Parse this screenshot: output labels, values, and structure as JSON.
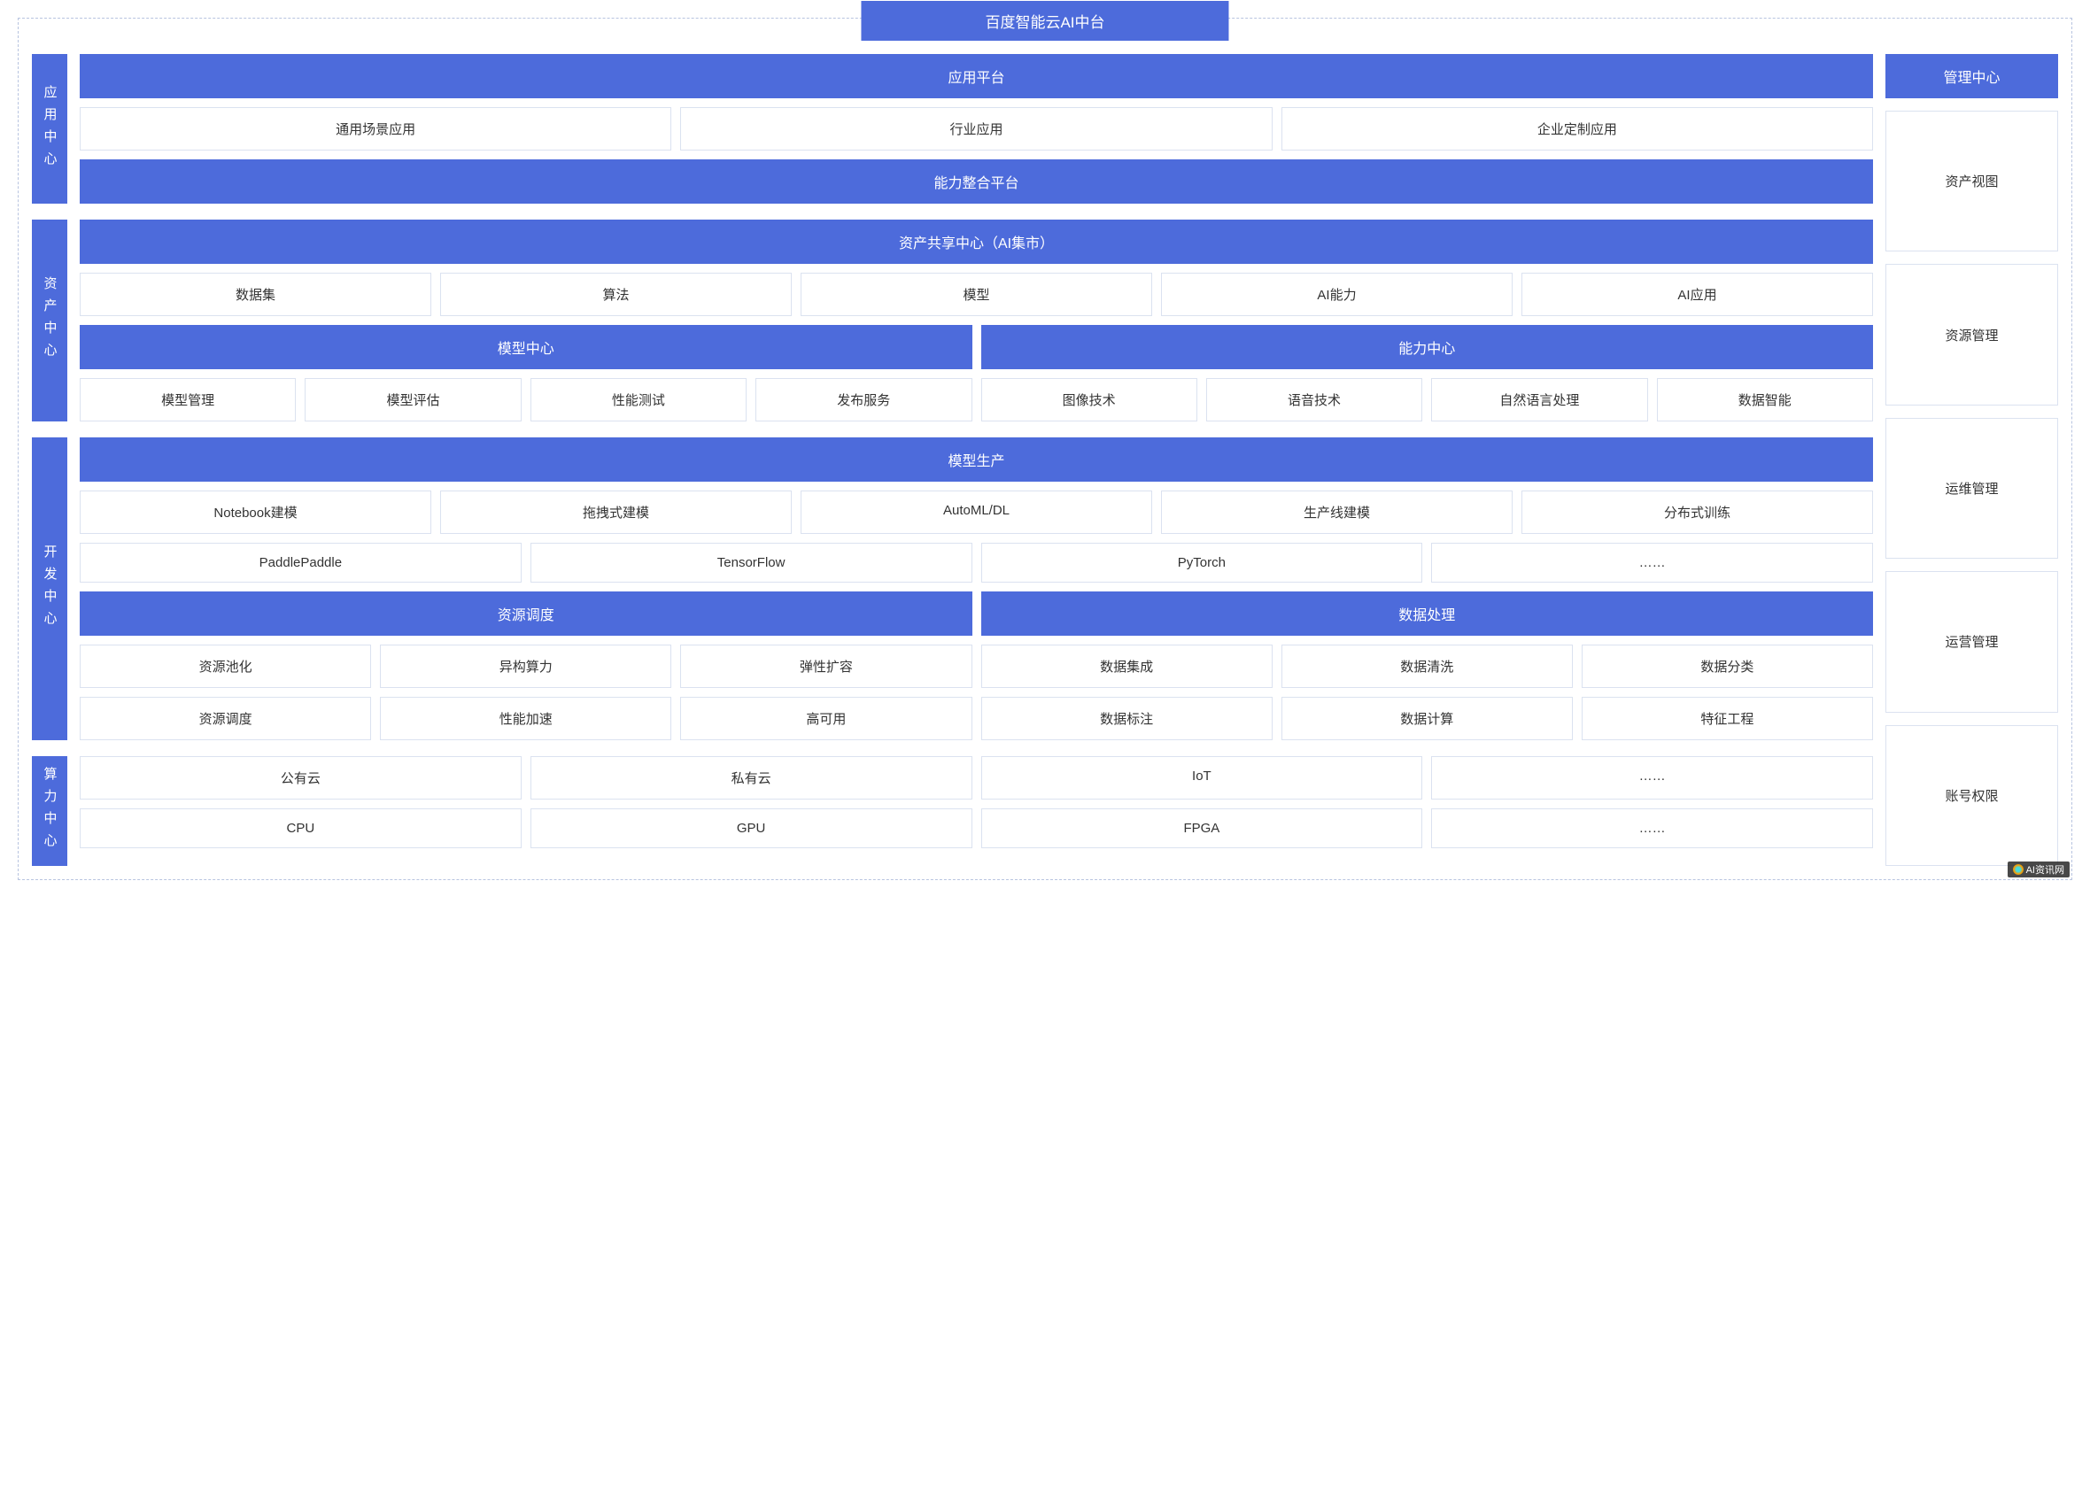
{
  "colors": {
    "primary": "#4d6bdb",
    "border": "#dbe2f0",
    "dashed_border": "#b8c4e0",
    "text_dark": "#333333",
    "text_light": "#ffffff",
    "background": "#ffffff"
  },
  "title": "百度智能云AI中台",
  "sections": {
    "app_center": {
      "label": "应用中心",
      "platform_header": "应用平台",
      "apps": [
        "通用场景应用",
        "行业应用",
        "企业定制应用"
      ],
      "integration_header": "能力整合平台"
    },
    "asset_center": {
      "label": "资产中心",
      "share_header": "资产共享中心（AI集市）",
      "assets": [
        "数据集",
        "算法",
        "模型",
        "AI能力",
        "AI应用"
      ],
      "model_center": {
        "header": "模型中心",
        "items": [
          "模型管理",
          "模型评估",
          "性能测试",
          "发布服务"
        ]
      },
      "ability_center": {
        "header": "能力中心",
        "items": [
          "图像技术",
          "语音技术",
          "自然语言处理",
          "数据智能"
        ]
      }
    },
    "dev_center": {
      "label": "开发中心",
      "model_production": {
        "header": "模型生产",
        "row1": [
          "Notebook建模",
          "拖拽式建模",
          "AutoML/DL",
          "生产线建模",
          "分布式训练"
        ],
        "row2": [
          "PaddlePaddle",
          "TensorFlow",
          "PyTorch",
          "……"
        ]
      },
      "resource_schedule": {
        "header": "资源调度",
        "row1": [
          "资源池化",
          "异构算力",
          "弹性扩容"
        ],
        "row2": [
          "资源调度",
          "性能加速",
          "高可用"
        ]
      },
      "data_process": {
        "header": "数据处理",
        "row1": [
          "数据集成",
          "数据清洗",
          "数据分类"
        ],
        "row2": [
          "数据标注",
          "数据计算",
          "特征工程"
        ]
      }
    },
    "compute_center": {
      "label": "算力中心",
      "row1": [
        "公有云",
        "私有云",
        "IoT",
        "……"
      ],
      "row2": [
        "CPU",
        "GPU",
        "FPGA",
        "……"
      ]
    }
  },
  "management": {
    "header": "管理中心",
    "items": [
      "资产视图",
      "资源管理",
      "运维管理",
      "运营管理",
      "账号权限"
    ]
  },
  "watermark": "AI资讯网"
}
